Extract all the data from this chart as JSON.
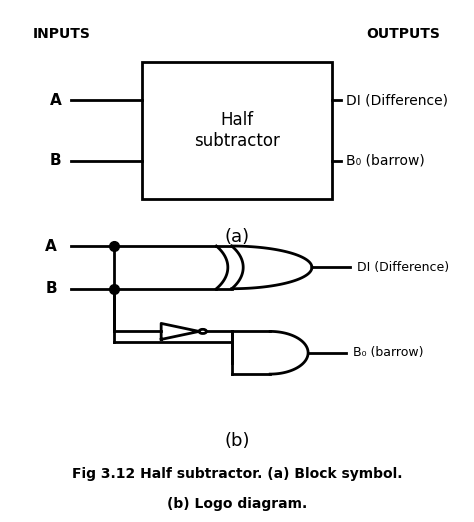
{
  "bg_color": "#ffffff",
  "line_color": "#000000",
  "text_color": "#000000",
  "lw": 2.0,
  "label_inputs": "INPUTS",
  "label_outputs": "OUTPUTS",
  "label_half_sub": "Half\nsubtractor",
  "label_a": "A",
  "label_b": "B",
  "label_di": "DI (Difference)",
  "label_bo": "B₀ (barrow)",
  "label_fig_a": "(a)",
  "label_fig_b": "(b)",
  "caption_line1": "Fig 3.12 Half subtractor. (a) Block symbol.",
  "caption_line2": "(b) Logo diagram."
}
